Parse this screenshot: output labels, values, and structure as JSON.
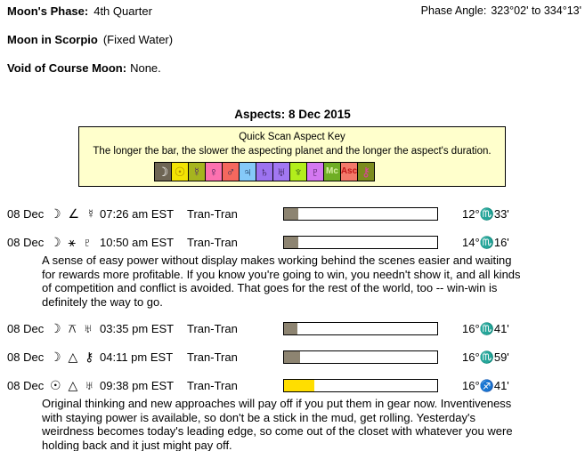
{
  "header": {
    "moons_phase_label": "Moon's Phase:",
    "moons_phase_value": "4th Quarter",
    "phase_angle_label": "Phase Angle:",
    "phase_angle_value": "323°02' to 334°13'",
    "moon_in_label": "Moon in Scorpio",
    "moon_in_note": "(Fixed Water)",
    "void_label": "Void of Course Moon:",
    "void_value": "None."
  },
  "aspects": {
    "title": "Aspects: 8 Dec 2015",
    "key": {
      "title": "Quick Scan Aspect Key",
      "subtitle": "The longer the bar, the slower the aspecting planet and the longer the aspect's duration.",
      "box_bg": "#FFFFCC",
      "cells": [
        {
          "name": "moon",
          "glyph": "☽",
          "bg": "#6E6554",
          "fg": "#FFFFFF"
        },
        {
          "name": "sun",
          "glyph": "☉",
          "bg": "#F2E404",
          "fg": "#A98500"
        },
        {
          "name": "mercury",
          "glyph": "☿",
          "bg": "#A6B41F",
          "fg": "#50246E"
        },
        {
          "name": "venus",
          "glyph": "♀",
          "bg": "#FC71B0",
          "fg": "#46205A"
        },
        {
          "name": "mars",
          "glyph": "♂",
          "bg": "#F4685E",
          "fg": "#32325A"
        },
        {
          "name": "jupiter",
          "glyph": "♃",
          "bg": "#85C9F9",
          "fg": "#1E3C64"
        },
        {
          "name": "saturn",
          "glyph": "♄",
          "bg": "#9C73F0",
          "fg": "#28143C"
        },
        {
          "name": "uranus",
          "glyph": "♅",
          "bg": "#A278F2",
          "fg": "#28143C"
        },
        {
          "name": "neptune",
          "glyph": "♆",
          "bg": "#B2EE1C",
          "fg": "#2E5A14"
        },
        {
          "name": "pluto",
          "glyph": "♇",
          "bg": "#D478F0",
          "fg": "#3C1450"
        },
        {
          "name": "midheaven",
          "glyph": "Mc",
          "bg": "#6FAE24",
          "fg": "#D8F0A2"
        },
        {
          "name": "ascendant",
          "glyph": "Asc",
          "bg": "#F4796A",
          "fg": "#C01818"
        },
        {
          "name": "chiron",
          "glyph": "⚷",
          "bg": "#7C8C1E",
          "fg": "#E040A0"
        }
      ]
    },
    "rows": [
      {
        "date": "08 Dec",
        "glyphs": "☽ ∠ ☿",
        "aspect": "moon-semisquare-mercury",
        "time": "07:26 am EST",
        "type": "Tran-Tran",
        "bar_fill_pct": 9.5,
        "bar_fill_color": "#8D8471",
        "position": "12°♏33'",
        "note": ""
      },
      {
        "date": "08 Dec",
        "glyphs": "☽ ⚹ ♇",
        "aspect": "moon-sextile-pluto",
        "time": "10:50 am EST",
        "type": "Tran-Tran",
        "bar_fill_pct": 9.5,
        "bar_fill_color": "#8D8471",
        "position": "14°♏16'",
        "note": "A sense of easy power without display makes working behind the scenes easier and waiting for rewards more profitable. If you know you're going to win, you needn't show it, and all kinds of competition and conflict is avoided. That goes for the rest of the world, too -- win-win is definitely the way to go."
      },
      {
        "date": "08 Dec",
        "glyphs": "☽ ⚻ ♅",
        "aspect": "moon-quincunx-uranus",
        "time": "03:35 pm EST",
        "type": "Tran-Tran",
        "bar_fill_pct": 9,
        "bar_fill_color": "#8D8471",
        "position": "16°♏41'",
        "note": ""
      },
      {
        "date": "08 Dec",
        "glyphs": "☽ △ ⚷",
        "aspect": "moon-trine-chiron",
        "time": "04:11 pm EST",
        "type": "Tran-Tran",
        "bar_fill_pct": 10.5,
        "bar_fill_color": "#8D8471",
        "position": "16°♏59'",
        "note": ""
      },
      {
        "date": "08 Dec",
        "glyphs": "☉ △ ♅",
        "aspect": "sun-trine-uranus",
        "time": "09:38 pm EST",
        "type": "Tran-Tran",
        "bar_fill_pct": 19.5,
        "bar_fill_color": "#FFDE00",
        "position": "16°♐41'",
        "note": "Original thinking and new approaches will pay off if you put them in gear now. Inventiveness with staying power is available, so don't be a stick in the mud, get rolling. Yesterday's weirdness becomes today's leading edge, so come out of the closet with whatever you were holding back and it just might pay off."
      }
    ]
  }
}
